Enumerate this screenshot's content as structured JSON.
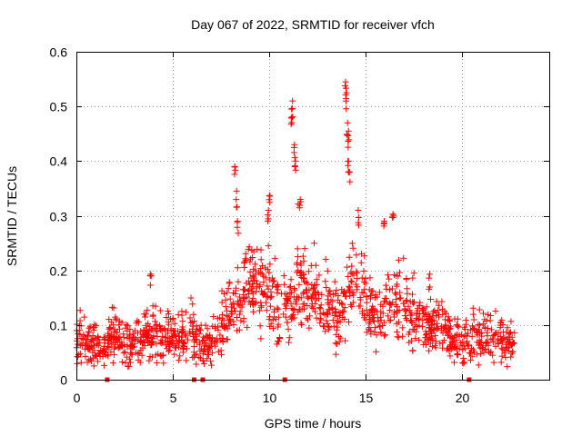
{
  "chart_data": {
    "type": "scatter",
    "title": "Day 067 of 2022, SRMTID for receiver vfch",
    "xlabel": "GPS time / hours",
    "ylabel": "SRMTID / TECUs",
    "xlim": [
      0,
      24.5
    ],
    "ylim": [
      0,
      0.6
    ],
    "xticks": [
      0,
      5,
      10,
      15,
      20
    ],
    "yticks": [
      0,
      0.1,
      0.2,
      0.3,
      0.4,
      0.5,
      0.6
    ],
    "xtick_labels": [
      "0",
      "5",
      "10",
      "15",
      "20"
    ],
    "ytick_labels": [
      "0",
      "0.1",
      "0.2",
      "0.3",
      "0.4",
      "0.5",
      "0.6"
    ],
    "grid": true,
    "marker": "+",
    "color": "#ff0000",
    "series": [
      {
        "name": "vfch",
        "profile": {
          "x": [
            0,
            0.5,
            1,
            1.5,
            1.8,
            2.0,
            2.5,
            3.0,
            3.5,
            4.0,
            4.5,
            5.0,
            5.5,
            6.0,
            6.5,
            7.0,
            7.5,
            8.0,
            8.5,
            9.0,
            9.5,
            10.0,
            10.5,
            11.0,
            11.5,
            12.0,
            12.5,
            13.0,
            13.5,
            14.0,
            14.5,
            15.0,
            15.5,
            16.0,
            16.5,
            17.0,
            17.5,
            18.0,
            18.5,
            19.0,
            19.5,
            20.0,
            20.5,
            21.0,
            21.5,
            22.0,
            22.7
          ],
          "y": [
            0.065,
            0.07,
            0.065,
            0.06,
            0.085,
            0.09,
            0.065,
            0.06,
            0.075,
            0.09,
            0.08,
            0.075,
            0.08,
            0.09,
            0.06,
            0.07,
            0.095,
            0.13,
            0.155,
            0.17,
            0.17,
            0.155,
            0.135,
            0.13,
            0.17,
            0.16,
            0.145,
            0.13,
            0.115,
            0.15,
            0.175,
            0.14,
            0.11,
            0.13,
            0.14,
            0.135,
            0.12,
            0.1,
            0.095,
            0.09,
            0.075,
            0.07,
            0.075,
            0.08,
            0.075,
            0.07,
            0.065
          ]
        },
        "peaks": [
          {
            "x": 3.85,
            "y": 0.193
          },
          {
            "x": 8.2,
            "y": 0.39
          },
          {
            "x": 8.3,
            "y": 0.345
          },
          {
            "x": 8.35,
            "y": 0.29
          },
          {
            "x": 10.0,
            "y": 0.337
          },
          {
            "x": 9.95,
            "y": 0.31
          },
          {
            "x": 11.2,
            "y": 0.51
          },
          {
            "x": 11.15,
            "y": 0.495
          },
          {
            "x": 11.3,
            "y": 0.43
          },
          {
            "x": 11.35,
            "y": 0.4
          },
          {
            "x": 11.6,
            "y": 0.33
          },
          {
            "x": 13.95,
            "y": 0.545
          },
          {
            "x": 14.0,
            "y": 0.525
          },
          {
            "x": 14.05,
            "y": 0.47
          },
          {
            "x": 14.1,
            "y": 0.455
          },
          {
            "x": 14.1,
            "y": 0.4
          },
          {
            "x": 14.15,
            "y": 0.38
          },
          {
            "x": 14.6,
            "y": 0.31
          },
          {
            "x": 15.95,
            "y": 0.29
          },
          {
            "x": 16.4,
            "y": 0.303
          },
          {
            "x": 18.3,
            "y": 0.193
          }
        ],
        "zero_markers_x": [
          1.6,
          6.1,
          6.55,
          10.8,
          20.35
        ]
      }
    ]
  }
}
